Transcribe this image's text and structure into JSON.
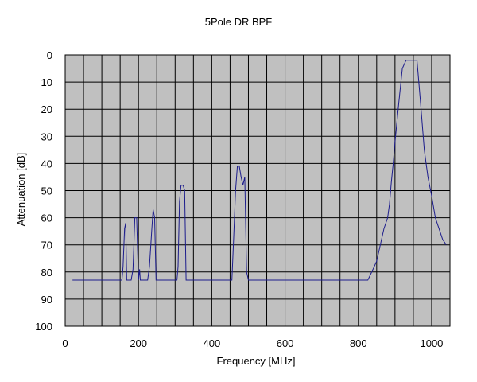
{
  "chart_data": {
    "type": "line",
    "title": "5Pole DR BPF",
    "xlabel": "Frequency [MHz]",
    "ylabel": "Attenuation [dB]",
    "xlim": [
      0,
      1050
    ],
    "ylim": [
      0,
      100
    ],
    "y_inverted": true,
    "x_ticks": [
      0,
      200,
      400,
      600,
      800,
      1000
    ],
    "x_tick_labels": [
      "0",
      "200",
      "400",
      "600",
      "800",
      "1000"
    ],
    "x_grid_step": 50,
    "y_ticks": [
      0,
      10,
      20,
      30,
      40,
      50,
      60,
      70,
      80,
      90,
      100
    ],
    "y_tick_labels": [
      "0",
      "10",
      "20",
      "30",
      "40",
      "50",
      "60",
      "70",
      "80",
      "90",
      "100"
    ],
    "grid": true,
    "plot_background": "#c0c0c0",
    "line_color": "#1c1c8c",
    "x": [
      20,
      155,
      158,
      162,
      165,
      168,
      170,
      180,
      185,
      190,
      195,
      200,
      203,
      205,
      215,
      225,
      230,
      236,
      240,
      244,
      248,
      253,
      305,
      308,
      312,
      316,
      322,
      326,
      330,
      335,
      340,
      455,
      460,
      465,
      470,
      475,
      480,
      485,
      490,
      495,
      500,
      505,
      540,
      826,
      840,
      850,
      860,
      870,
      880,
      885,
      890,
      895,
      900,
      910,
      920,
      930,
      935,
      945,
      960,
      970,
      980,
      990,
      1000,
      1010,
      1020,
      1030,
      1040
    ],
    "y": [
      83,
      83,
      78,
      64,
      62,
      83,
      83,
      83,
      79,
      60,
      60,
      83,
      79,
      83,
      83,
      83,
      78,
      65,
      57,
      60,
      83,
      83,
      83,
      78,
      54,
      48,
      48,
      50,
      83,
      83,
      83,
      83,
      67,
      50,
      41,
      41,
      45,
      48,
      45,
      80,
      83,
      83,
      83,
      83,
      79,
      76,
      70,
      64,
      60,
      55,
      47,
      40,
      32,
      18,
      5,
      2,
      2,
      2,
      2,
      18,
      35,
      45,
      52,
      60,
      64,
      68,
      70
    ]
  }
}
